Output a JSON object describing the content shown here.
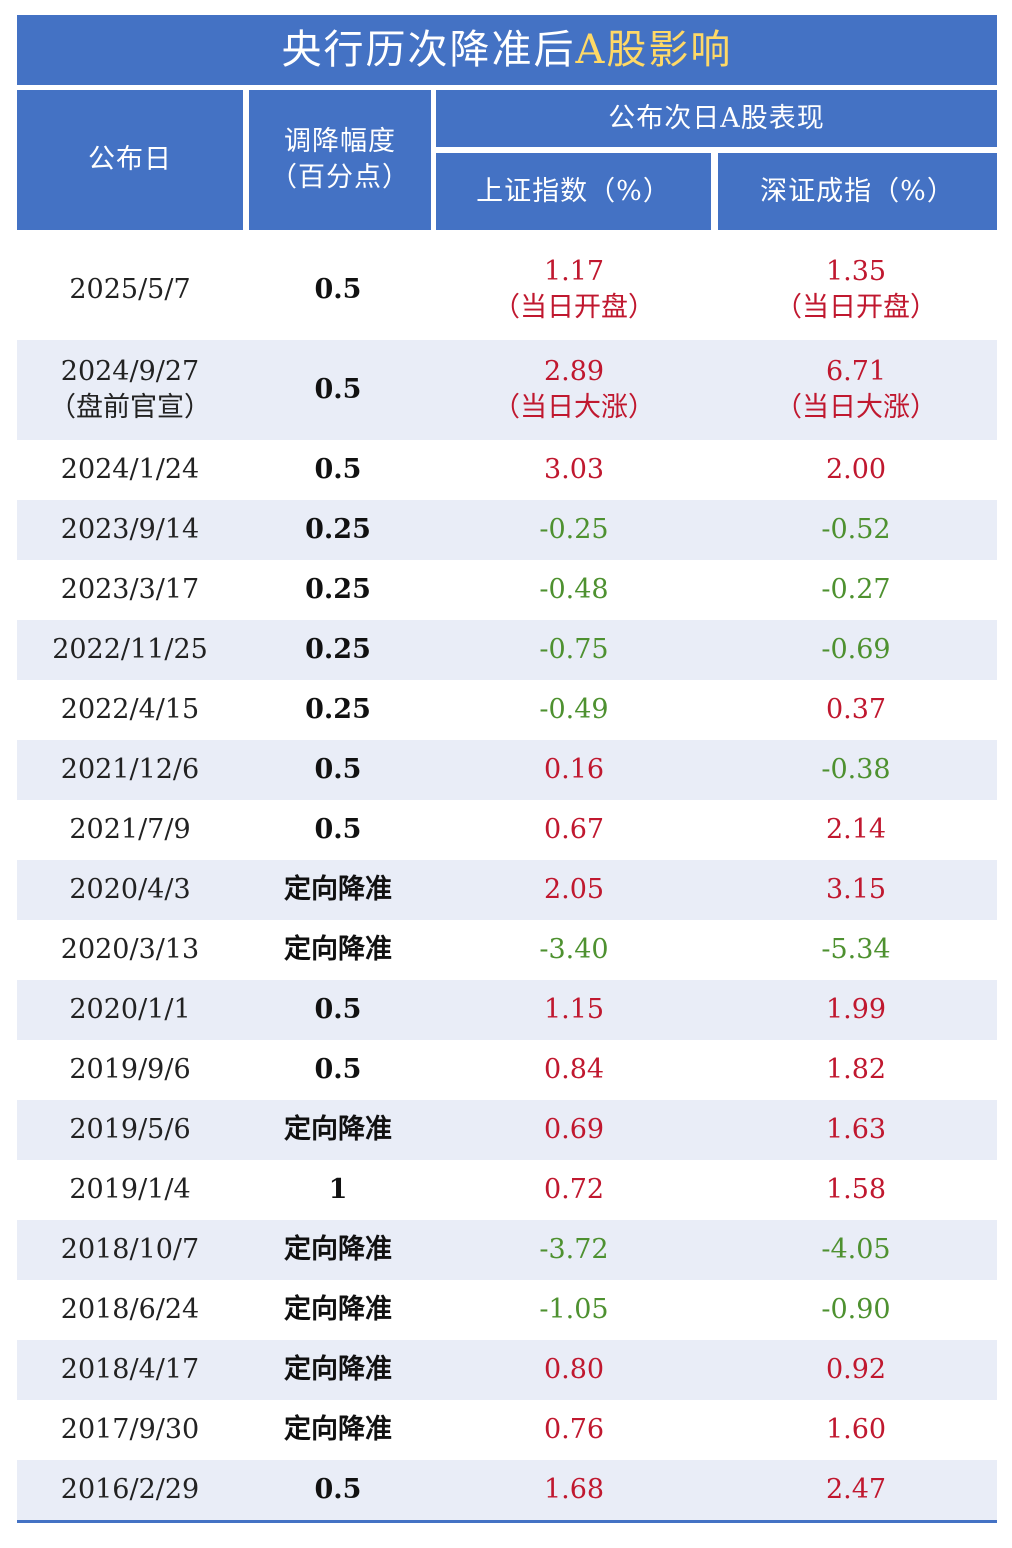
{
  "title": {
    "main": "央行历次降准后",
    "highlight": "A股影响"
  },
  "headers": {
    "date": "公布日",
    "cut_line1": "调降幅度",
    "cut_line2": "（百分点）",
    "group": "公布次日A股表现",
    "sh": "上证指数（%）",
    "sz": "深证成指（%）"
  },
  "colors": {
    "header_bg": "#4472c4",
    "title_highlight": "#ffd966",
    "stripe": "#e9edf7",
    "up": "#c0182f",
    "down": "#4e9130"
  },
  "rows": [
    {
      "date": "2025/5/7",
      "date_note": "",
      "cut": "0.5",
      "sh": "1.17",
      "sh_note": "（当日开盘）",
      "sz": "1.35",
      "sz_note": "（当日开盘）"
    },
    {
      "date": "2024/9/27",
      "date_note": "（盘前官宣）",
      "cut": "0.5",
      "sh": "2.89",
      "sh_note": "（当日大涨）",
      "sz": "6.71",
      "sz_note": "（当日大涨）"
    },
    {
      "date": "2024/1/24",
      "date_note": "",
      "cut": "0.5",
      "sh": "3.03",
      "sh_note": "",
      "sz": "2.00",
      "sz_note": ""
    },
    {
      "date": "2023/9/14",
      "date_note": "",
      "cut": "0.25",
      "sh": "-0.25",
      "sh_note": "",
      "sz": "-0.52",
      "sz_note": ""
    },
    {
      "date": "2023/3/17",
      "date_note": "",
      "cut": "0.25",
      "sh": "-0.48",
      "sh_note": "",
      "sz": "-0.27",
      "sz_note": ""
    },
    {
      "date": "2022/11/25",
      "date_note": "",
      "cut": "0.25",
      "sh": "-0.75",
      "sh_note": "",
      "sz": "-0.69",
      "sz_note": ""
    },
    {
      "date": "2022/4/15",
      "date_note": "",
      "cut": "0.25",
      "sh": "-0.49",
      "sh_note": "",
      "sz": "0.37",
      "sz_note": ""
    },
    {
      "date": "2021/12/6",
      "date_note": "",
      "cut": "0.5",
      "sh": "0.16",
      "sh_note": "",
      "sz": "-0.38",
      "sz_note": ""
    },
    {
      "date": "2021/7/9",
      "date_note": "",
      "cut": "0.5",
      "sh": "0.67",
      "sh_note": "",
      "sz": "2.14",
      "sz_note": ""
    },
    {
      "date": "2020/4/3",
      "date_note": "",
      "cut": "定向降准",
      "sh": "2.05",
      "sh_note": "",
      "sz": "3.15",
      "sz_note": ""
    },
    {
      "date": "2020/3/13",
      "date_note": "",
      "cut": "定向降准",
      "sh": "-3.40",
      "sh_note": "",
      "sz": "-5.34",
      "sz_note": ""
    },
    {
      "date": "2020/1/1",
      "date_note": "",
      "cut": "0.5",
      "sh": "1.15",
      "sh_note": "",
      "sz": "1.99",
      "sz_note": ""
    },
    {
      "date": "2019/9/6",
      "date_note": "",
      "cut": "0.5",
      "sh": "0.84",
      "sh_note": "",
      "sz": "1.82",
      "sz_note": ""
    },
    {
      "date": "2019/5/6",
      "date_note": "",
      "cut": "定向降准",
      "sh": "0.69",
      "sh_note": "",
      "sz": "1.63",
      "sz_note": ""
    },
    {
      "date": "2019/1/4",
      "date_note": "",
      "cut": "1",
      "sh": "0.72",
      "sh_note": "",
      "sz": "1.58",
      "sz_note": ""
    },
    {
      "date": "2018/10/7",
      "date_note": "",
      "cut": "定向降准",
      "sh": "-3.72",
      "sh_note": "",
      "sz": "-4.05",
      "sz_note": ""
    },
    {
      "date": "2018/6/24",
      "date_note": "",
      "cut": "定向降准",
      "sh": "-1.05",
      "sh_note": "",
      "sz": "-0.90",
      "sz_note": ""
    },
    {
      "date": "2018/4/17",
      "date_note": "",
      "cut": "定向降准",
      "sh": "0.80",
      "sh_note": "",
      "sz": "0.92",
      "sz_note": ""
    },
    {
      "date": "2017/9/30",
      "date_note": "",
      "cut": "定向降准",
      "sh": "0.76",
      "sh_note": "",
      "sz": "1.60",
      "sz_note": ""
    },
    {
      "date": "2016/2/29",
      "date_note": "",
      "cut": "0.5",
      "sh": "1.68",
      "sh_note": "",
      "sz": "2.47",
      "sz_note": ""
    }
  ]
}
